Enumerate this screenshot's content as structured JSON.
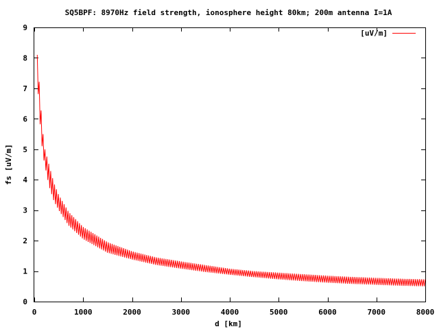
{
  "chart_data": {
    "type": "line",
    "title": "SQ5BPF: 8970Hz field strength, ionosphere height 80km; 200m antenna I=1A",
    "xlabel": "d [km]",
    "ylabel": "fs [uV/m]",
    "xlim": [
      0,
      8000
    ],
    "ylim": [
      0,
      9
    ],
    "x_ticks": [
      0,
      1000,
      2000,
      3000,
      4000,
      5000,
      6000,
      7000,
      8000
    ],
    "y_ticks": [
      0,
      1,
      2,
      3,
      4,
      5,
      6,
      7,
      8,
      9
    ],
    "grid": false,
    "legend_position": "top-right",
    "series": [
      {
        "name": "[uV/m]",
        "color": "#ff0000",
        "oscillating": true,
        "x": [
          60,
          100,
          150,
          200,
          300,
          400,
          500,
          700,
          1000,
          1500,
          2000,
          2500,
          3000,
          3500,
          4000,
          4500,
          5000,
          5500,
          6000,
          6500,
          7000,
          7500,
          8000
        ],
        "y_max": [
          8.1,
          7.2,
          6.0,
          5.1,
          4.5,
          3.9,
          3.5,
          2.95,
          2.45,
          1.95,
          1.65,
          1.45,
          1.32,
          1.2,
          1.08,
          1.0,
          0.95,
          0.9,
          0.85,
          0.81,
          0.78,
          0.75,
          0.73
        ],
        "y_min": [
          7.4,
          6.2,
          5.2,
          4.6,
          3.8,
          3.3,
          3.0,
          2.5,
          2.05,
          1.6,
          1.38,
          1.2,
          1.08,
          0.97,
          0.88,
          0.8,
          0.73,
          0.67,
          0.62,
          0.58,
          0.55,
          0.52,
          0.5
        ]
      }
    ]
  }
}
